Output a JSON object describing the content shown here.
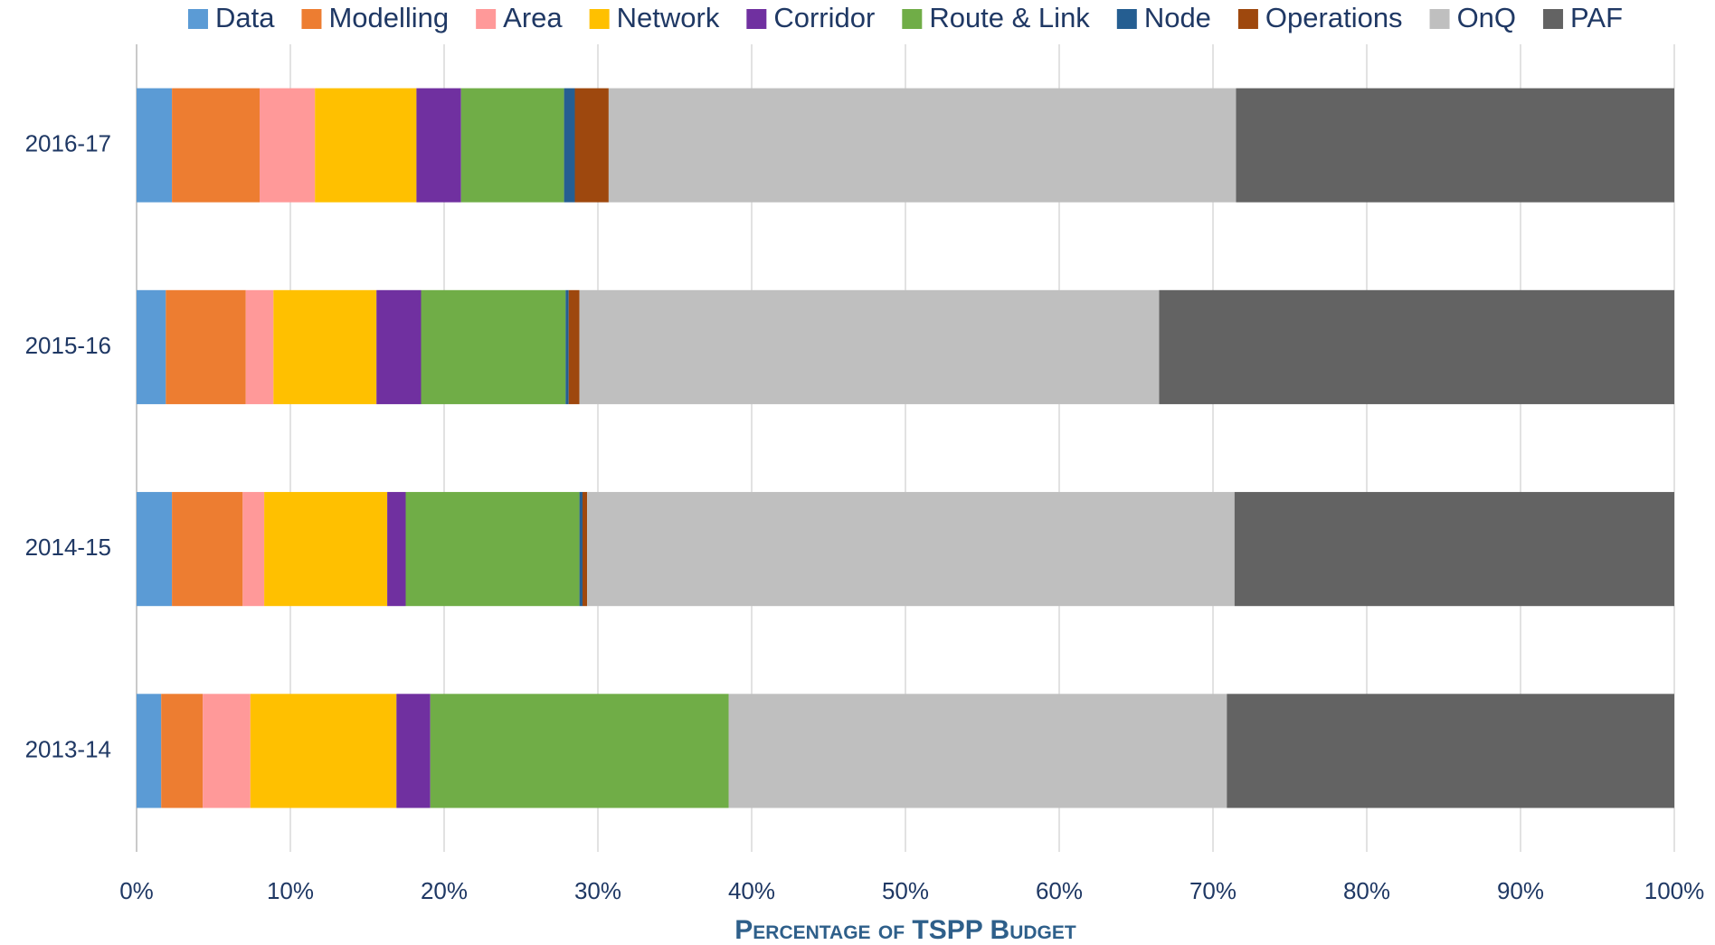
{
  "chart_data": {
    "type": "stacked_barh",
    "xlabel": "Percentage of TSPP Budget",
    "categories": [
      "2016-17",
      "2015-16",
      "2014-15",
      "2013-14"
    ],
    "series": [
      {
        "name": "Data",
        "color": "#5b9bd5",
        "values": [
          2.3,
          1.9,
          2.3,
          1.6
        ]
      },
      {
        "name": "Modelling",
        "color": "#ed7d31",
        "values": [
          5.7,
          5.2,
          4.6,
          2.7
        ]
      },
      {
        "name": "Area",
        "color": "#ff9999",
        "values": [
          3.6,
          1.8,
          1.4,
          3.1
        ]
      },
      {
        "name": "Network",
        "color": "#ffc000",
        "values": [
          6.6,
          6.7,
          8.0,
          9.5
        ]
      },
      {
        "name": "Corridor",
        "color": "#7030a0",
        "values": [
          2.9,
          2.9,
          1.2,
          2.2
        ]
      },
      {
        "name": "Route & Link",
        "color": "#70ad47",
        "values": [
          6.7,
          9.4,
          11.3,
          19.4
        ]
      },
      {
        "name": "Node",
        "color": "#255e91",
        "values": [
          0.7,
          0.2,
          0.2,
          0
        ]
      },
      {
        "name": "Operations",
        "color": "#9e480e",
        "values": [
          2.2,
          0.7,
          0.3,
          0
        ]
      },
      {
        "name": "OnQ",
        "color": "#bfbfbf",
        "values": [
          40.8,
          37.7,
          42.1,
          32.4
        ]
      },
      {
        "name": "PAF",
        "color": "#636363",
        "values": [
          28.5,
          33.5,
          28.6,
          29.1
        ]
      }
    ],
    "xlim": [
      0,
      100
    ],
    "xticks": [
      {
        "value": 0,
        "label": "0%"
      },
      {
        "value": 10,
        "label": "10%"
      },
      {
        "value": 20,
        "label": "20%"
      },
      {
        "value": 30,
        "label": "30%"
      },
      {
        "value": 40,
        "label": "40%"
      },
      {
        "value": 50,
        "label": "50%"
      },
      {
        "value": 60,
        "label": "60%"
      },
      {
        "value": 70,
        "label": "70%"
      },
      {
        "value": 80,
        "label": "80%"
      },
      {
        "value": 90,
        "label": "90%"
      },
      {
        "value": 100,
        "label": "100%"
      }
    ],
    "grid": true,
    "legend": "top"
  }
}
